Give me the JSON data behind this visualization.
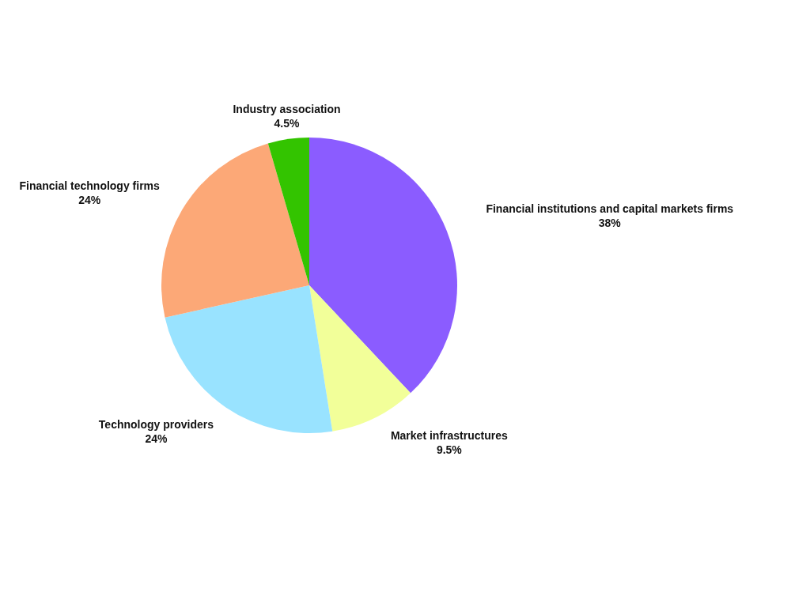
{
  "chart_data": {
    "type": "pie",
    "categories": [
      "Financial institutions and capital markets firms",
      "Market infrastructures",
      "Technology providers",
      "Financial technology firms",
      "Industry association"
    ],
    "values": [
      38,
      9.5,
      24,
      24,
      4.5
    ],
    "value_labels": [
      "38%",
      "9.5%",
      "24%",
      "24%",
      "4.5%"
    ],
    "colors": [
      "#8b5cff",
      "#f2ff99",
      "#99e3ff",
      "#fca877",
      "#33c400"
    ]
  }
}
